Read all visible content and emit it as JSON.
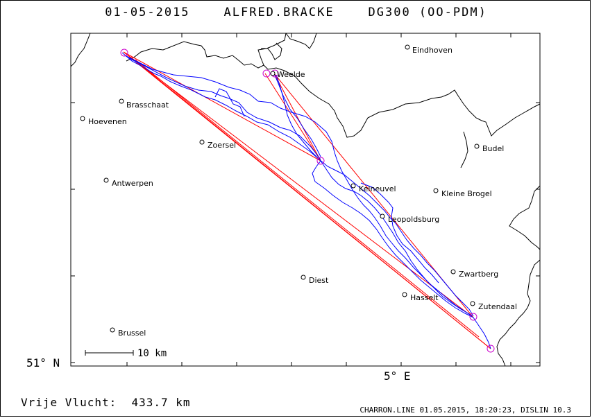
{
  "header": {
    "date": "01-05-2015",
    "pilot": "ALFRED.BRACKE",
    "glider": "DG300 (OO-PDM)"
  },
  "axes": {
    "lat_label": "51° N",
    "lon_label": "5° E"
  },
  "scale": {
    "label": "10 km"
  },
  "distance": {
    "label": "Vrije Vlucht:",
    "value": "433.7 km"
  },
  "footer": "CHARRON.LINE 01.05.2015, 18:20:23, DISLIN 10.3",
  "colors": {
    "track": "#0000ff",
    "task": "#ff0000",
    "turnpoint": "#cc00cc",
    "border": "#000000"
  },
  "cities": [
    "Eindhoven",
    "Weelde",
    "Brasschaat",
    "Hoevenen",
    "Zoersel",
    "Budel",
    "Antwerpen",
    "Kelneuvel",
    "Kleine Brogel",
    "Leopoldsburg",
    "Zwartberg",
    "Diest",
    "Hasselt",
    "Zutendaal",
    "Brussel"
  ]
}
